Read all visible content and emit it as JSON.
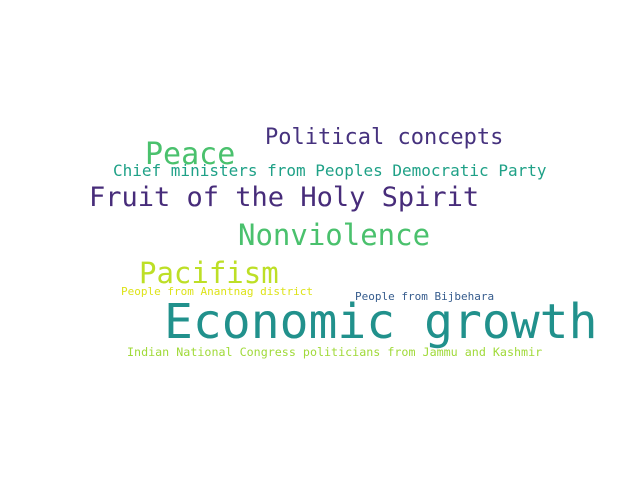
{
  "word_cloud": {
    "words": [
      {
        "text": "Political concepts",
        "color": "#46327e"
      },
      {
        "text": "Peace",
        "color": "#4ac16d"
      },
      {
        "text": "Chief ministers from Peoples Democratic Party",
        "color": "#1fa187"
      },
      {
        "text": "Fruit of the Holy Spirit",
        "color": "#472c7a"
      },
      {
        "text": "Nonviolence",
        "color": "#4ac16d"
      },
      {
        "text": "Pacifism",
        "color": "#bddf26"
      },
      {
        "text": "People from Anantnag district",
        "color": "#dde318"
      },
      {
        "text": "People from Bijbehara",
        "color": "#365c8d"
      },
      {
        "text": "Economic growth",
        "color": "#21918c"
      },
      {
        "text": "Indian National Congress politicians from Jammu and Kashmir",
        "color": "#a0da39"
      }
    ]
  }
}
